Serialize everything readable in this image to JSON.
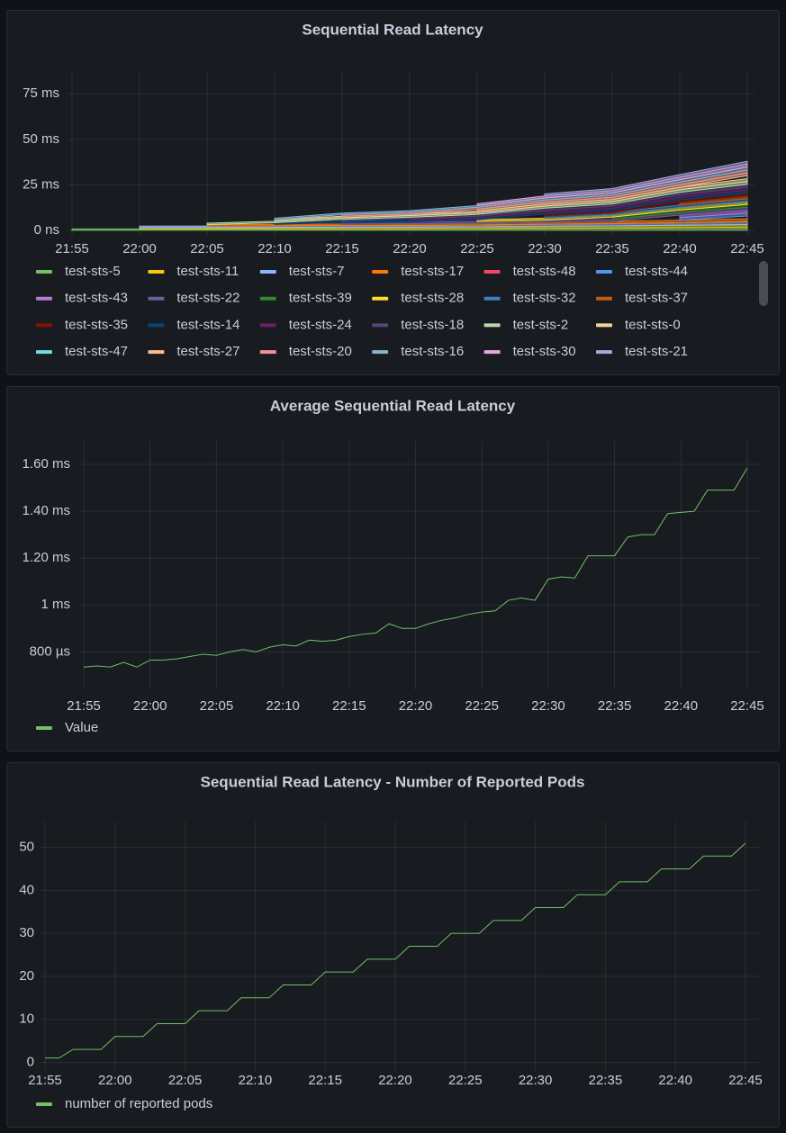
{
  "chart_data": [
    {
      "type": "stacked-area",
      "title": "Sequential Read Latency",
      "stacked": true,
      "grid": true,
      "x": [
        "21:55",
        "22:00",
        "22:05",
        "22:10",
        "22:15",
        "22:20",
        "22:25",
        "22:30",
        "22:35",
        "22:40",
        "22:45"
      ],
      "xticks": [
        "21:55",
        "22:00",
        "22:05",
        "22:10",
        "22:15",
        "22:20",
        "22:25",
        "22:30",
        "22:35",
        "22:40",
        "22:45"
      ],
      "ylim": [
        -3,
        87
      ],
      "yticks": [
        {
          "value": 0,
          "label": "0 ns"
        },
        {
          "value": 25,
          "label": "25 ms"
        },
        {
          "value": 50,
          "label": "50 ms"
        },
        {
          "value": 75,
          "label": "75 ms"
        }
      ],
      "series": [
        {
          "name": "test-sts-5",
          "color": "#73bf69",
          "values": [
            0.74,
            0.77,
            0.79,
            0.84,
            0.87,
            0.91,
            0.98,
            1.12,
            1.22,
            1.4,
            1.59
          ]
        },
        {
          "name": "test-sts-11",
          "color": "#f2cc0c",
          "values": [
            null,
            0.75,
            0.78,
            0.82,
            0.85,
            0.89,
            0.96,
            1.1,
            1.2,
            1.38,
            1.57
          ]
        },
        {
          "name": "test-sts-7",
          "color": "#8ab8ff",
          "values": [
            null,
            0.78,
            0.8,
            0.84,
            0.88,
            0.92,
            0.99,
            1.13,
            1.23,
            1.41,
            1.6
          ]
        },
        {
          "name": "test-sts-17",
          "color": "#ff780a",
          "values": [
            null,
            null,
            0.77,
            0.82,
            0.85,
            0.89,
            0.96,
            1.09,
            1.19,
            1.38,
            1.56
          ]
        },
        {
          "name": "test-sts-48",
          "color": "#f2495c",
          "values": [
            null,
            null,
            null,
            null,
            null,
            null,
            null,
            null,
            null,
            null,
            1.57
          ]
        },
        {
          "name": "test-sts-44",
          "color": "#5794f2",
          "values": [
            null,
            null,
            null,
            null,
            null,
            null,
            null,
            null,
            null,
            1.4,
            1.59
          ]
        },
        {
          "name": "test-sts-43",
          "color": "#b877d9",
          "values": [
            null,
            null,
            null,
            null,
            null,
            null,
            null,
            null,
            null,
            1.38,
            1.57
          ]
        },
        {
          "name": "test-sts-22",
          "color": "#705da0",
          "values": [
            null,
            null,
            null,
            null,
            0.87,
            0.91,
            0.98,
            1.12,
            1.22,
            1.4,
            1.59
          ]
        },
        {
          "name": "test-sts-39",
          "color": "#37872d",
          "values": [
            null,
            null,
            null,
            null,
            null,
            null,
            null,
            null,
            1.2,
            1.39,
            1.58
          ]
        },
        {
          "name": "test-sts-28",
          "color": "#fade2a",
          "values": [
            null,
            null,
            null,
            null,
            null,
            null,
            0.96,
            1.1,
            1.2,
            1.38,
            1.57
          ]
        },
        {
          "name": "test-sts-32",
          "color": "#447ebc",
          "values": [
            null,
            null,
            null,
            null,
            null,
            null,
            null,
            1.12,
            1.22,
            1.4,
            1.59
          ]
        },
        {
          "name": "test-sts-37",
          "color": "#c15c17",
          "values": [
            null,
            null,
            null,
            null,
            null,
            null,
            null,
            null,
            null,
            1.41,
            1.6
          ]
        },
        {
          "name": "test-sts-35",
          "color": "#890f02",
          "values": [
            null,
            null,
            null,
            null,
            null,
            null,
            null,
            1.1,
            1.2,
            1.38,
            1.57
          ]
        },
        {
          "name": "test-sts-14",
          "color": "#0a437c",
          "values": [
            null,
            null,
            null,
            0.83,
            0.86,
            0.9,
            0.97,
            1.11,
            1.21,
            1.39,
            1.58
          ]
        },
        {
          "name": "test-sts-24",
          "color": "#6d1f62",
          "values": [
            null,
            null,
            null,
            null,
            null,
            0.89,
            0.96,
            1.1,
            1.2,
            1.38,
            1.57
          ]
        },
        {
          "name": "test-sts-18",
          "color": "#584477",
          "values": [
            null,
            null,
            null,
            null,
            0.85,
            0.89,
            0.96,
            1.1,
            1.2,
            1.38,
            1.57
          ]
        },
        {
          "name": "test-sts-2",
          "color": "#b7dbab",
          "values": [
            null,
            null,
            0.8,
            0.84,
            0.87,
            0.91,
            0.98,
            1.12,
            1.22,
            1.4,
            1.59
          ]
        },
        {
          "name": "test-sts-0",
          "color": "#f4d598",
          "values": [
            null,
            null,
            null,
            0.82,
            0.85,
            0.89,
            0.96,
            1.1,
            1.2,
            1.38,
            1.57
          ]
        },
        {
          "name": "test-sts-47",
          "color": "#70dbed",
          "values": [
            null,
            null,
            null,
            null,
            null,
            null,
            null,
            null,
            null,
            null,
            1.6
          ]
        },
        {
          "name": "test-sts-27",
          "color": "#f9ba8f",
          "values": [
            null,
            null,
            null,
            null,
            null,
            null,
            0.98,
            1.12,
            1.22,
            1.4,
            1.59
          ]
        },
        {
          "name": "test-sts-20",
          "color": "#f29191",
          "values": [
            null,
            null,
            null,
            null,
            0.86,
            0.9,
            0.97,
            1.11,
            1.21,
            1.39,
            1.58
          ]
        },
        {
          "name": "test-sts-16",
          "color": "#82b5d8",
          "values": [
            null,
            null,
            null,
            0.84,
            0.87,
            0.91,
            0.98,
            1.12,
            1.22,
            1.4,
            1.59
          ]
        },
        {
          "name": "test-sts-30",
          "color": "#e5a8e2",
          "values": [
            null,
            null,
            null,
            null,
            null,
            null,
            0.97,
            1.11,
            1.21,
            1.39,
            1.58
          ]
        },
        {
          "name": "test-sts-21",
          "color": "#aea2e0",
          "values": [
            null,
            null,
            null,
            null,
            null,
            null,
            null,
            1.11,
            1.21,
            1.39,
            1.58
          ]
        }
      ]
    },
    {
      "type": "line",
      "title": "Average Sequential Read Latency",
      "grid": true,
      "x": [
        "21:55",
        "21:56",
        "21:57",
        "21:58",
        "21:59",
        "22:00",
        "22:01",
        "22:02",
        "22:03",
        "22:04",
        "22:05",
        "22:06",
        "22:07",
        "22:08",
        "22:09",
        "22:10",
        "22:11",
        "22:12",
        "22:13",
        "22:14",
        "22:15",
        "22:16",
        "22:17",
        "22:18",
        "22:19",
        "22:20",
        "22:21",
        "22:22",
        "22:23",
        "22:24",
        "22:25",
        "22:26",
        "22:27",
        "22:28",
        "22:29",
        "22:30",
        "22:31",
        "22:32",
        "22:33",
        "22:34",
        "22:35",
        "22:36",
        "22:37",
        "22:38",
        "22:39",
        "22:40",
        "22:41",
        "22:42",
        "22:43",
        "22:44",
        "22:45"
      ],
      "xticks": [
        "21:55",
        "22:00",
        "22:05",
        "22:10",
        "22:15",
        "22:20",
        "22:25",
        "22:30",
        "22:35",
        "22:40",
        "22:45"
      ],
      "ylim": [
        0.64,
        1.7
      ],
      "yticks": [
        {
          "value": 0.8,
          "label": "800 µs"
        },
        {
          "value": 1,
          "label": "1 ms"
        },
        {
          "value": 1.2,
          "label": "1.20 ms"
        },
        {
          "value": 1.4,
          "label": "1.40 ms"
        },
        {
          "value": 1.6,
          "label": "1.60 ms"
        }
      ],
      "series": [
        {
          "name": "Value",
          "color": "#73bf69",
          "values": [
            0.735,
            0.74,
            0.735,
            0.755,
            0.735,
            0.765,
            0.765,
            0.77,
            0.78,
            0.79,
            0.785,
            0.8,
            0.81,
            0.8,
            0.82,
            0.83,
            0.825,
            0.85,
            0.845,
            0.85,
            0.865,
            0.875,
            0.88,
            0.92,
            0.9,
            0.9,
            0.92,
            0.935,
            0.945,
            0.96,
            0.97,
            0.975,
            1.02,
            1.03,
            1.02,
            1.11,
            1.12,
            1.115,
            1.21,
            1.21,
            1.21,
            1.29,
            1.3,
            1.3,
            1.39,
            1.395,
            1.4,
            1.49,
            1.49,
            1.49,
            1.585
          ]
        }
      ]
    },
    {
      "type": "line",
      "title": "Sequential Read Latency - Number of Reported Pods",
      "grid": true,
      "x": [
        "21:55",
        "21:56",
        "21:57",
        "21:58",
        "21:59",
        "22:00",
        "22:01",
        "22:02",
        "22:03",
        "22:04",
        "22:05",
        "22:06",
        "22:07",
        "22:08",
        "22:09",
        "22:10",
        "22:11",
        "22:12",
        "22:13",
        "22:14",
        "22:15",
        "22:16",
        "22:17",
        "22:18",
        "22:19",
        "22:20",
        "22:21",
        "22:22",
        "22:23",
        "22:24",
        "22:25",
        "22:26",
        "22:27",
        "22:28",
        "22:29",
        "22:30",
        "22:31",
        "22:32",
        "22:33",
        "22:34",
        "22:35",
        "22:36",
        "22:37",
        "22:38",
        "22:39",
        "22:40",
        "22:41",
        "22:42",
        "22:43",
        "22:44",
        "22:45"
      ],
      "xticks": [
        "21:55",
        "22:00",
        "22:05",
        "22:10",
        "22:15",
        "22:20",
        "22:25",
        "22:30",
        "22:35",
        "22:40",
        "22:45"
      ],
      "ylim": [
        -2,
        56
      ],
      "yticks": [
        0,
        10,
        20,
        30,
        40,
        50
      ],
      "series": [
        {
          "name": "number of reported pods",
          "color": "#73bf69",
          "values": [
            1,
            1,
            3,
            3,
            3,
            6,
            6,
            6,
            9,
            9,
            9,
            12,
            12,
            12,
            15,
            15,
            15,
            18,
            18,
            18,
            21,
            21,
            21,
            24,
            24,
            24,
            27,
            27,
            27,
            30,
            30,
            30,
            33,
            33,
            33,
            36,
            36,
            36,
            39,
            39,
            39,
            42,
            42,
            42,
            45,
            45,
            45,
            48,
            48,
            48,
            51
          ]
        }
      ]
    }
  ]
}
